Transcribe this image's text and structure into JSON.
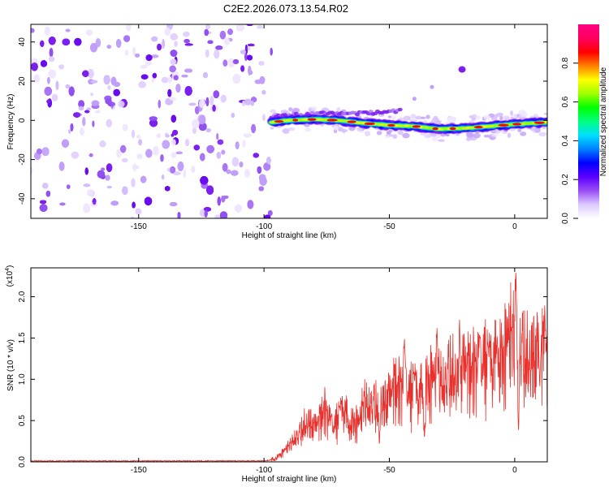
{
  "title": "C2E2.2026.073.13.54.R02",
  "colors": {
    "scatter_purple": "#7b1ff0",
    "band_red": "#d62020",
    "snr_line": "#e8302c",
    "axis": "#000000"
  },
  "chart_data": [
    {
      "type": "heatmap",
      "title": "C2E2.2026.073.13.54.R02",
      "xlabel": "Height of straight line (km)",
      "ylabel": "Frequency (Hz)",
      "xlim": [
        -193,
        13
      ],
      "ylim": [
        -50,
        49
      ],
      "xticks": [
        -150,
        -100,
        -50,
        0
      ],
      "yticks": [
        -40,
        -20,
        0,
        20,
        40
      ],
      "grid": false,
      "noise_region_x": [
        -193,
        -97
      ],
      "signal_band": {
        "x": [
          -97,
          -90,
          -80,
          -70,
          -60,
          -50,
          -40,
          -30,
          -20,
          -10,
          0,
          13
        ],
        "y": [
          -1,
          0,
          0.5,
          0,
          -1.5,
          -2.5,
          -3,
          -4.5,
          -4,
          -3,
          -2,
          -1
        ]
      },
      "secondary_streak": {
        "x": [
          -97,
          -85,
          -75,
          -65,
          -55,
          -45
        ],
        "y": [
          2,
          3,
          3.5,
          3.5,
          4,
          5
        ]
      },
      "isolated_blobs": [
        {
          "x": -21,
          "y": 26
        },
        {
          "x": -33,
          "y": 17
        },
        {
          "x": -40,
          "y": 11
        }
      ],
      "colorbar": {
        "label": "Normalized spectral amplitude",
        "range": [
          0.0,
          1.0
        ],
        "ticks": [
          "0.0",
          "0.2",
          "0.4",
          "0.6",
          "0.8"
        ],
        "colormap": [
          "#ffffff",
          "#dccaff",
          "#9a4df5",
          "#5a00ff",
          "#0000ff",
          "#0080ff",
          "#00e0ff",
          "#00ff80",
          "#00ff00",
          "#a0ff00",
          "#ffff00",
          "#ff8000",
          "#ff0000",
          "#ff0060",
          "#ff0080"
        ]
      }
    },
    {
      "type": "line",
      "title": "",
      "xlabel": "Height of straight line (km)",
      "ylabel": "SNR (10 * v/v)",
      "y_multiplier_label": "(x10",
      "y_multiplier_exp": "4",
      "xlim": [
        -193,
        13
      ],
      "ylim": [
        0,
        2.35
      ],
      "xticks": [
        -150,
        -100,
        -50,
        0
      ],
      "yticks": [
        "0.0",
        "0.5",
        "1.0",
        "1.5",
        "2.0"
      ],
      "grid": false,
      "series": [
        {
          "x": [
            -193,
            -150,
            -100,
            -96,
            -94,
            -92,
            -90,
            -88,
            -86,
            -84,
            -82,
            -80,
            -78,
            -76,
            -74,
            -72,
            -70,
            -68,
            -66,
            -64,
            -62,
            -60,
            -58,
            -56,
            -54,
            -52,
            -50,
            -48,
            -46,
            -44,
            -42,
            -40,
            -38,
            -36,
            -34,
            -32,
            -30,
            -28,
            -26,
            -24,
            -22,
            -20,
            -18,
            -16,
            -14,
            -12,
            -10,
            -8,
            -6,
            -4,
            -2,
            0,
            1,
            3,
            5,
            7,
            9,
            11,
            13
          ],
          "y": [
            0.01,
            0.01,
            0.01,
            0.03,
            0.08,
            0.12,
            0.18,
            0.25,
            0.3,
            0.45,
            0.5,
            0.4,
            0.48,
            0.62,
            0.5,
            0.42,
            0.56,
            0.65,
            0.45,
            0.5,
            0.42,
            0.7,
            0.6,
            0.65,
            0.75,
            0.72,
            0.75,
            0.9,
            0.85,
            0.95,
            0.8,
            0.92,
            0.78,
            0.95,
            0.98,
            0.9,
            0.95,
            0.82,
            1.05,
            1.1,
            0.9,
            1.15,
            1.08,
            1.1,
            1.15,
            1.2,
            1.18,
            1.2,
            1.25,
            1.3,
            1.38,
            1.45,
            1.28,
            1.25,
            1.28,
            1.32,
            1.25,
            1.3,
            1.25
          ]
        }
      ],
      "peaks": [
        {
          "x": 0.5,
          "y": 2.35
        },
        {
          "x": -44,
          "y": 1.5
        },
        {
          "x": -31,
          "y": 1.62
        },
        {
          "x": -22,
          "y": 1.72
        },
        {
          "x": -14,
          "y": 1.55
        },
        {
          "x": -7,
          "y": 1.52
        },
        {
          "x": 10,
          "y": 1.85
        },
        {
          "x": 12,
          "y": 1.9
        }
      ],
      "troughs": [
        {
          "x": 1.5,
          "y": 0.35
        },
        {
          "x": 10,
          "y": 0.85
        },
        {
          "x": -54,
          "y": 0.2
        },
        {
          "x": -36,
          "y": 0.25
        }
      ]
    }
  ]
}
